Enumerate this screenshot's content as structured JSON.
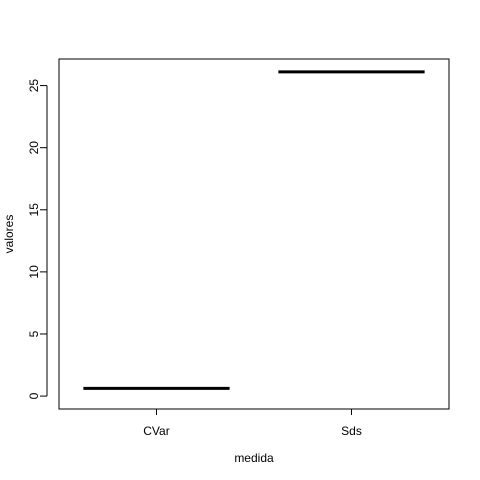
{
  "chart_data": {
    "type": "bar",
    "title": "",
    "xlabel": "medida",
    "ylabel": "valores",
    "categories": [
      "CVar",
      "Sds"
    ],
    "values": [
      0.62,
      26.1
    ],
    "ylim": [
      -1.04,
      27.14
    ],
    "yticks": [
      0,
      5,
      10,
      15,
      20,
      25
    ],
    "grid": false,
    "legend": "none",
    "colors": {
      "line": "#000000",
      "frame": "#000000",
      "background": "#ffffff"
    }
  }
}
